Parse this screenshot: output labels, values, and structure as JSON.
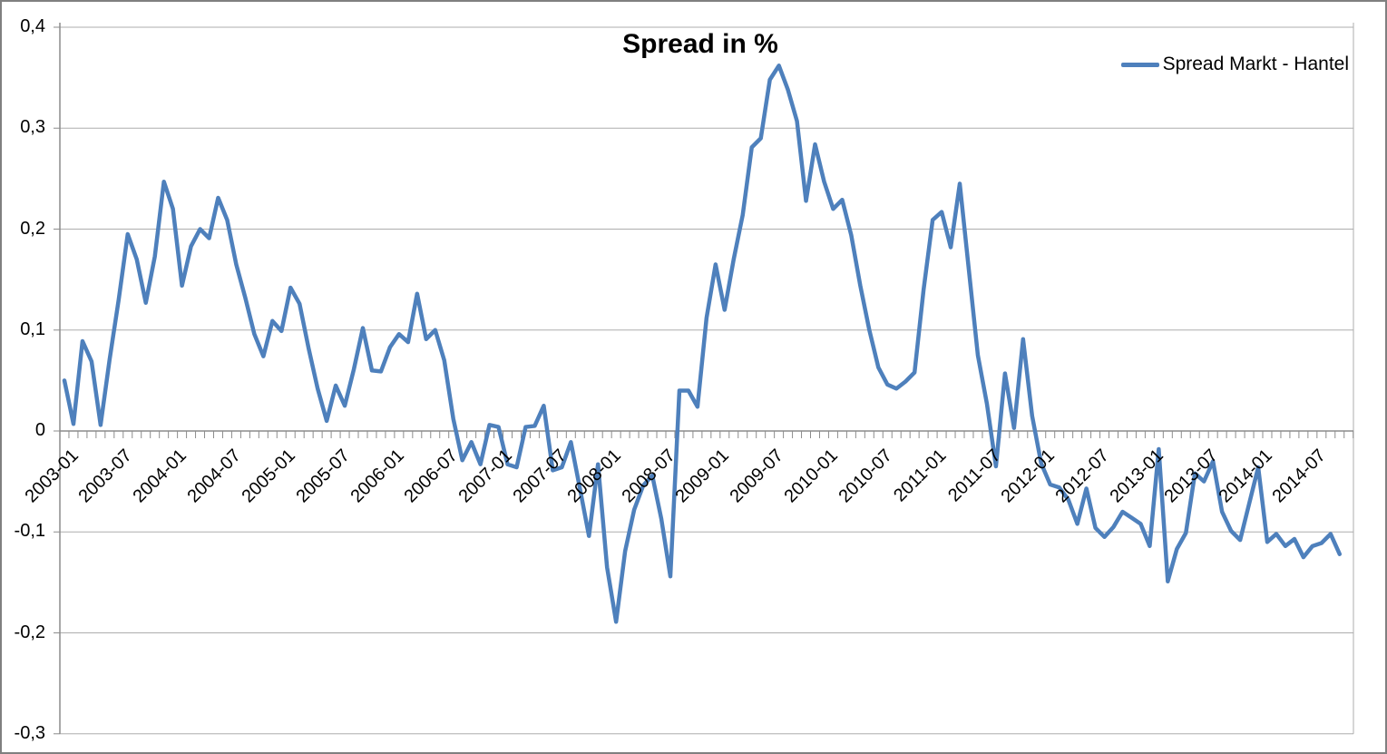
{
  "chart_data": {
    "type": "line",
    "title": "Spread in %",
    "grid": true,
    "legend_position": "top-right",
    "colors": {
      "line": "#4E80BC",
      "gridline": "#ADADAD",
      "axis": "#8C8C8C",
      "frame_border": "#7F7F7F",
      "text": "#000000"
    },
    "ylim": [
      -0.3,
      0.4
    ],
    "y_ticks": [
      0.4,
      0.3,
      0.2,
      0.1,
      0,
      -0.1,
      -0.2,
      -0.3
    ],
    "y_tick_labels": [
      "0,4",
      "0,3",
      "0,2",
      "0,1",
      "0",
      "-0,1",
      "-0,2",
      "-0,3"
    ],
    "x_tick_labels": [
      "2003-01",
      "2003-07",
      "2004-01",
      "2004-07",
      "2005-01",
      "2005-07",
      "2006-01",
      "2006-07",
      "2007-01",
      "2007-07",
      "2008-01",
      "2008-07",
      "2009-01",
      "2009-07",
      "2010-01",
      "2010-07",
      "2011-01",
      "2011-07",
      "2012-01",
      "2012-07",
      "2013-01",
      "2013-07",
      "2014-01",
      "2014-07"
    ],
    "x_tick_month_indices": [
      0,
      6,
      12,
      18,
      24,
      30,
      36,
      42,
      48,
      54,
      60,
      66,
      72,
      78,
      84,
      90,
      96,
      102,
      108,
      114,
      120,
      126,
      132,
      138
    ],
    "x_frequency": "monthly",
    "months": [
      "2003-01",
      "2003-02",
      "2003-03",
      "2003-04",
      "2003-05",
      "2003-06",
      "2003-07",
      "2003-08",
      "2003-09",
      "2003-10",
      "2003-11",
      "2003-12",
      "2004-01",
      "2004-02",
      "2004-03",
      "2004-04",
      "2004-05",
      "2004-06",
      "2004-07",
      "2004-08",
      "2004-09",
      "2004-10",
      "2004-11",
      "2004-12",
      "2005-01",
      "2005-02",
      "2005-03",
      "2005-04",
      "2005-05",
      "2005-06",
      "2005-07",
      "2005-08",
      "2005-09",
      "2005-10",
      "2005-11",
      "2005-12",
      "2006-01",
      "2006-02",
      "2006-03",
      "2006-04",
      "2006-05",
      "2006-06",
      "2006-07",
      "2006-08",
      "2006-09",
      "2006-10",
      "2006-11",
      "2006-12",
      "2007-01",
      "2007-02",
      "2007-03",
      "2007-04",
      "2007-05",
      "2007-06",
      "2007-07",
      "2007-08",
      "2007-09",
      "2007-10",
      "2007-11",
      "2007-12",
      "2008-01",
      "2008-02",
      "2008-03",
      "2008-04",
      "2008-05",
      "2008-06",
      "2008-07",
      "2008-08",
      "2008-09",
      "2008-10",
      "2008-11",
      "2008-12",
      "2009-01",
      "2009-02",
      "2009-03",
      "2009-04",
      "2009-05",
      "2009-06",
      "2009-07",
      "2009-08",
      "2009-09",
      "2009-10",
      "2009-11",
      "2009-12",
      "2010-01",
      "2010-02",
      "2010-03",
      "2010-04",
      "2010-05",
      "2010-06",
      "2010-07",
      "2010-08",
      "2010-09",
      "2010-10",
      "2010-11",
      "2010-12",
      "2011-01",
      "2011-02",
      "2011-03",
      "2011-04",
      "2011-05",
      "2011-06",
      "2011-07",
      "2011-08",
      "2011-09",
      "2011-10",
      "2011-11",
      "2011-12",
      "2012-01",
      "2012-02",
      "2012-03",
      "2012-04",
      "2012-05",
      "2012-06",
      "2012-07",
      "2012-08",
      "2012-09",
      "2012-10",
      "2012-11",
      "2012-12",
      "2013-01",
      "2013-02",
      "2013-03",
      "2013-04",
      "2013-05",
      "2013-06",
      "2013-07",
      "2013-08",
      "2013-09",
      "2013-10",
      "2013-11",
      "2013-12",
      "2014-01",
      "2014-02",
      "2014-03",
      "2014-04",
      "2014-05",
      "2014-06",
      "2014-07",
      "2014-08",
      "2014-09",
      "2014-10"
    ],
    "series": [
      {
        "name": "Spread Markt - Hantel",
        "color": "#4E80BC",
        "values": [
          0.05,
          0.007,
          0.089,
          0.069,
          0.006,
          0.071,
          0.13,
          0.195,
          0.17,
          0.127,
          0.173,
          0.247,
          0.22,
          0.144,
          0.183,
          0.2,
          0.191,
          0.231,
          0.209,
          0.165,
          0.132,
          0.096,
          0.074,
          0.109,
          0.099,
          0.142,
          0.126,
          0.082,
          0.042,
          0.01,
          0.045,
          0.025,
          0.061,
          0.102,
          0.06,
          0.059,
          0.083,
          0.096,
          0.088,
          0.136,
          0.091,
          0.1,
          0.07,
          0.012,
          -0.029,
          -0.011,
          -0.033,
          0.006,
          0.004,
          -0.033,
          -0.036,
          0.004,
          0.005,
          0.025,
          -0.039,
          -0.036,
          -0.011,
          -0.057,
          -0.104,
          -0.033,
          -0.135,
          -0.189,
          -0.119,
          -0.078,
          -0.054,
          -0.044,
          -0.087,
          -0.144,
          0.04,
          0.04,
          0.024,
          0.112,
          0.165,
          0.12,
          0.17,
          0.214,
          0.281,
          0.29,
          0.348,
          0.362,
          0.338,
          0.307,
          0.228,
          0.284,
          0.247,
          0.22,
          0.229,
          0.194,
          0.144,
          0.1,
          0.063,
          0.046,
          0.042,
          0.049,
          0.058,
          0.14,
          0.209,
          0.217,
          0.182,
          0.245,
          0.16,
          0.075,
          0.027,
          -0.035,
          0.057,
          0.003,
          0.091,
          0.015,
          -0.032,
          -0.053,
          -0.056,
          -0.068,
          -0.092,
          -0.057,
          -0.096,
          -0.105,
          -0.095,
          -0.08,
          -0.086,
          -0.092,
          -0.114,
          -0.018,
          -0.149,
          -0.117,
          -0.101,
          -0.042,
          -0.05,
          -0.03,
          -0.08,
          -0.099,
          -0.108,
          -0.072,
          -0.036,
          -0.11,
          -0.102,
          -0.114,
          -0.107,
          -0.125,
          -0.114,
          -0.111,
          -0.102,
          -0.122
        ]
      }
    ]
  }
}
